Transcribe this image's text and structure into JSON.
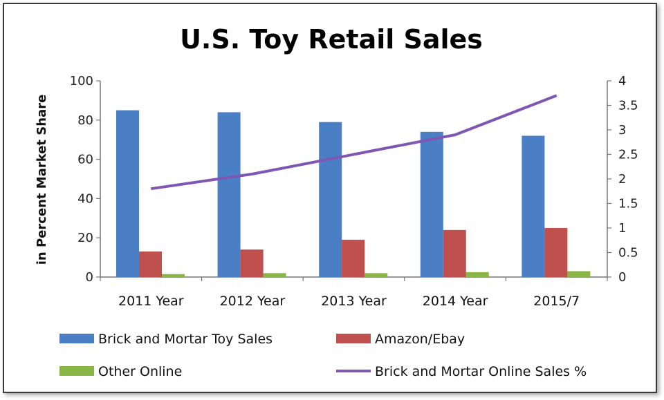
{
  "chart_data": {
    "type": "bar",
    "title": "U.S. Toy Retail Sales",
    "ylabel": "in Percent Market Share",
    "ylim": [
      0,
      100
    ],
    "y_ticks": [
      "0",
      "20",
      "40",
      "60",
      "80",
      "100"
    ],
    "y2lim": [
      0,
      4
    ],
    "y2_ticks": [
      "0",
      "0.5",
      "1",
      "1.5",
      "2",
      "2.5",
      "3",
      "3.5",
      "4"
    ],
    "categories": [
      "2011 Year",
      "2012 Year",
      "2013 Year",
      "2014 Year",
      "2015/7"
    ],
    "series": [
      {
        "name": "Brick and Mortar Toy Sales",
        "type": "bar",
        "axis": "left",
        "color": "#4a7ec5",
        "values": [
          85,
          84,
          79,
          74,
          72
        ]
      },
      {
        "name": "Amazon/Ebay",
        "type": "bar",
        "axis": "left",
        "color": "#c0504d",
        "values": [
          13,
          14,
          19,
          24,
          25
        ]
      },
      {
        "name": "Other Online",
        "type": "bar",
        "axis": "left",
        "color": "#8ab648",
        "values": [
          1.5,
          2,
          2,
          2.5,
          3
        ]
      },
      {
        "name": "Brick and Mortar Online Sales %",
        "type": "line",
        "axis": "right",
        "color": "#7f56b2",
        "values": [
          1.8,
          2.1,
          2.5,
          2.9,
          3.7
        ]
      }
    ],
    "grid": false,
    "legend_position": "bottom"
  }
}
